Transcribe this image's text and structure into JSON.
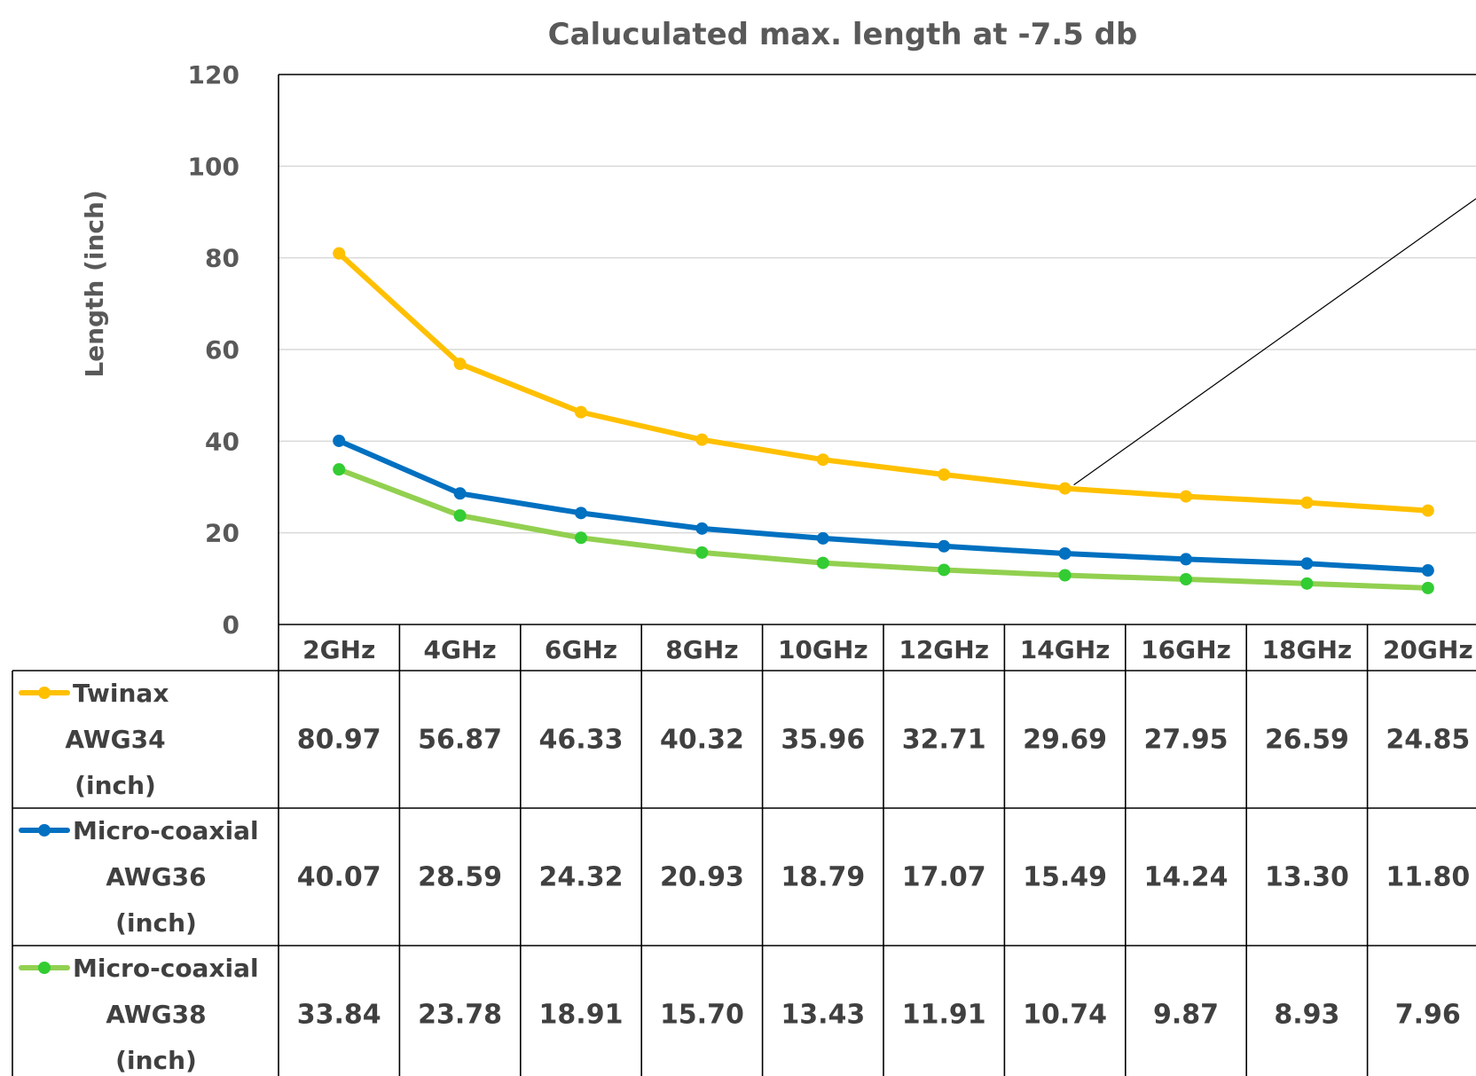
{
  "chart_data": {
    "type": "line",
    "title": "Caluculated max. length at -7.5 db",
    "ylabel": "Length (inch)",
    "xlabel": "",
    "ylim": [
      0,
      120
    ],
    "yticks": [
      "0",
      "20",
      "40",
      "60",
      "80",
      "100",
      "120"
    ],
    "categories": [
      "2GHz",
      "4GHz",
      "6GHz",
      "8GHz",
      "10GHz",
      "12GHz",
      "14GHz",
      "16GHz",
      "18GHz",
      "20GHz"
    ],
    "grid": true,
    "legend": "data table",
    "series": [
      {
        "name_lines": [
          "Twinax",
          "AWG34",
          "(inch)"
        ],
        "color": "#FFC000",
        "values": [
          80.97,
          56.87,
          46.33,
          40.32,
          35.96,
          32.71,
          29.69,
          27.95,
          26.59,
          24.85
        ],
        "labels": [
          "80.97",
          "56.87",
          "46.33",
          "40.32",
          "35.96",
          "32.71",
          "29.69",
          "27.95",
          "26.59",
          "24.85"
        ]
      },
      {
        "name_lines": [
          "Micro-coaxial",
          "AWG36",
          "(inch)"
        ],
        "color": "#0070C0",
        "values": [
          40.07,
          28.59,
          24.32,
          20.93,
          18.79,
          17.07,
          15.49,
          14.24,
          13.3,
          11.8
        ],
        "labels": [
          "40.07",
          "28.59",
          "24.32",
          "20.93",
          "18.79",
          "17.07",
          "15.49",
          "14.24",
          "13.30",
          "11.80"
        ]
      },
      {
        "name_lines": [
          "Micro-coaxial",
          "AWG38",
          "(inch)"
        ],
        "color": "#92D050",
        "marker_color": "#33CC33",
        "values": [
          33.84,
          23.78,
          18.91,
          15.7,
          13.43,
          11.91,
          10.74,
          9.87,
          8.93,
          7.96
        ],
        "labels": [
          "33.84",
          "23.78",
          "18.91",
          "15.70",
          "13.43",
          "11.91",
          "10.74",
          "9.87",
          "8.93",
          "7.96"
        ]
      }
    ]
  }
}
